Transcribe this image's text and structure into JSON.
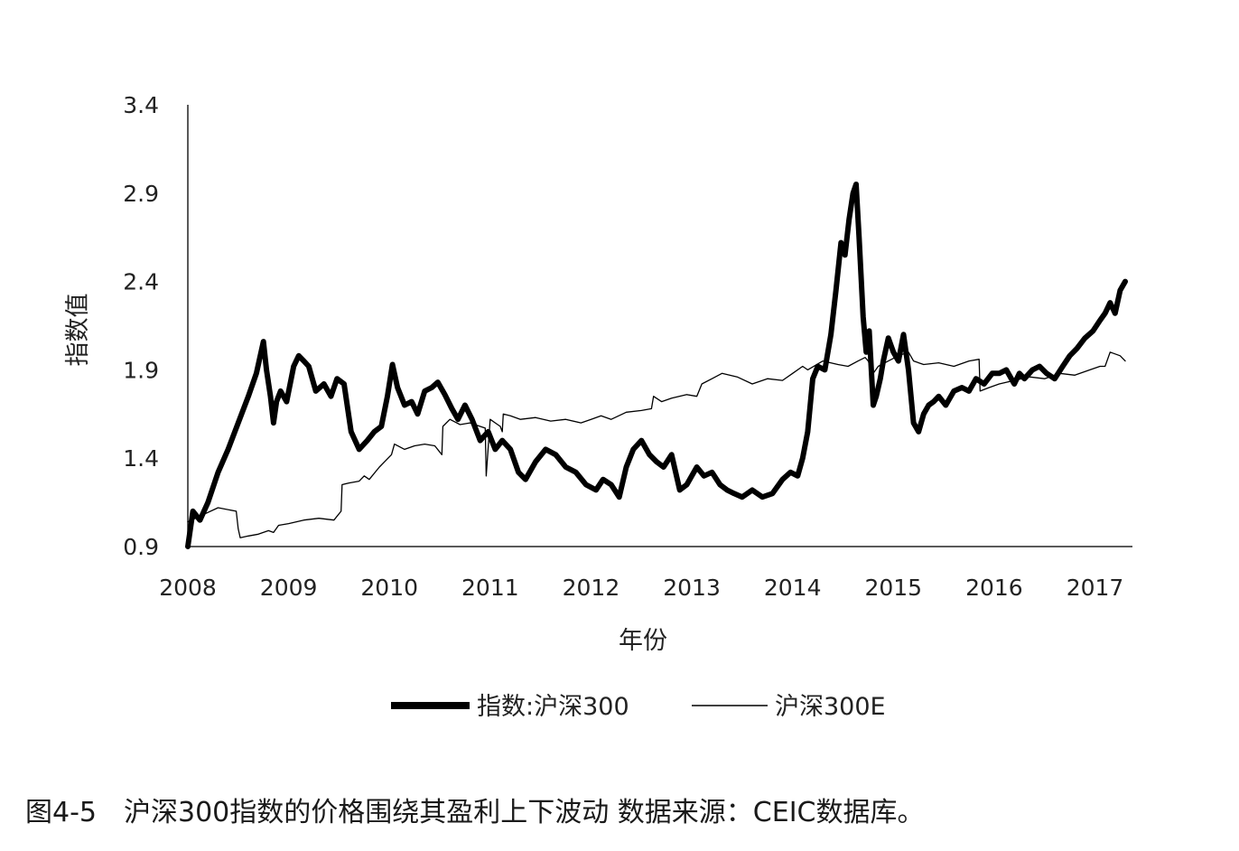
{
  "caption": "图4-5　沪深300指数的价格围绕其盈利上下波动 数据来源：CEIC数据库。",
  "chart_data": {
    "type": "line",
    "title": "",
    "xlabel": "年份",
    "ylabel": "指数值",
    "xlim": [
      2008,
      2017.4
    ],
    "ylim": [
      0.9,
      3.4
    ],
    "x_ticks": [
      "2008",
      "2009",
      "2010",
      "2011",
      "2012",
      "2013",
      "2014",
      "2015",
      "2016",
      "2017"
    ],
    "y_ticks": [
      "0.9",
      "1.4",
      "1.9",
      "2.4",
      "2.9",
      "3.4"
    ],
    "grid": false,
    "legend_position": "bottom",
    "series": [
      {
        "name": "指数:沪深300",
        "style": "thick",
        "color": "#000000",
        "x": [
          2008.0,
          2008.05,
          2008.12,
          2008.2,
          2008.3,
          2008.4,
          2008.5,
          2008.6,
          2008.68,
          2008.75,
          2008.78,
          2008.82,
          2008.85,
          2008.88,
          2008.92,
          2008.98,
          2009.05,
          2009.1,
          2009.15,
          2009.2,
          2009.27,
          2009.35,
          2009.42,
          2009.48,
          2009.55,
          2009.62,
          2009.7,
          2009.78,
          2009.85,
          2009.92,
          2009.98,
          2010.03,
          2010.08,
          2010.15,
          2010.22,
          2010.28,
          2010.35,
          2010.42,
          2010.48,
          2010.55,
          2010.62,
          2010.68,
          2010.75,
          2010.82,
          2010.9,
          2010.98,
          2011.05,
          2011.12,
          2011.2,
          2011.28,
          2011.35,
          2011.45,
          2011.55,
          2011.65,
          2011.75,
          2011.85,
          2011.95,
          2012.05,
          2012.12,
          2012.2,
          2012.28,
          2012.35,
          2012.42,
          2012.5,
          2012.58,
          2012.65,
          2012.72,
          2012.8,
          2012.88,
          2012.95,
          2013.05,
          2013.12,
          2013.2,
          2013.28,
          2013.35,
          2013.42,
          2013.5,
          2013.6,
          2013.7,
          2013.8,
          2013.9,
          2013.98,
          2014.05,
          2014.1,
          2014.15,
          2014.2,
          2014.25,
          2014.32,
          2014.38,
          2014.43,
          2014.48,
          2014.52,
          2014.56,
          2014.6,
          2014.63,
          2014.66,
          2014.7,
          2014.73,
          2014.76,
          2014.8,
          2014.83,
          2014.87,
          2014.9,
          2014.95,
          2015.0,
          2015.05,
          2015.1,
          2015.15,
          2015.2,
          2015.25,
          2015.3,
          2015.35,
          2015.4,
          2015.45,
          2015.52,
          2015.6,
          2015.68,
          2015.75,
          2015.82,
          2015.9,
          2015.98,
          2016.05,
          2016.12,
          2016.2,
          2016.25,
          2016.3,
          2016.38,
          2016.45,
          2016.52,
          2016.6,
          2016.68,
          2016.75,
          2016.82,
          2016.9,
          2016.98,
          2017.05,
          2017.1,
          2017.15,
          2017.2,
          2017.25,
          2017.3
        ],
        "y": [
          0.9,
          1.1,
          1.05,
          1.15,
          1.32,
          1.45,
          1.6,
          1.75,
          1.88,
          2.06,
          1.9,
          1.75,
          1.6,
          1.72,
          1.78,
          1.72,
          1.92,
          1.98,
          1.95,
          1.92,
          1.78,
          1.82,
          1.75,
          1.85,
          1.82,
          1.55,
          1.45,
          1.5,
          1.55,
          1.58,
          1.75,
          1.93,
          1.8,
          1.7,
          1.72,
          1.65,
          1.78,
          1.8,
          1.83,
          1.76,
          1.68,
          1.62,
          1.7,
          1.62,
          1.5,
          1.55,
          1.45,
          1.5,
          1.45,
          1.32,
          1.28,
          1.38,
          1.45,
          1.42,
          1.35,
          1.32,
          1.25,
          1.22,
          1.28,
          1.25,
          1.18,
          1.35,
          1.45,
          1.5,
          1.42,
          1.38,
          1.35,
          1.42,
          1.22,
          1.25,
          1.35,
          1.3,
          1.32,
          1.25,
          1.22,
          1.2,
          1.18,
          1.22,
          1.18,
          1.2,
          1.28,
          1.32,
          1.3,
          1.4,
          1.55,
          1.85,
          1.92,
          1.9,
          2.1,
          2.35,
          2.62,
          2.55,
          2.75,
          2.9,
          2.95,
          2.65,
          2.2,
          2.0,
          2.12,
          1.7,
          1.75,
          1.85,
          1.95,
          2.08,
          2.0,
          1.95,
          2.1,
          1.9,
          1.6,
          1.55,
          1.65,
          1.7,
          1.72,
          1.75,
          1.7,
          1.78,
          1.8,
          1.78,
          1.85,
          1.82,
          1.88,
          1.88,
          1.9,
          1.82,
          1.88,
          1.85,
          1.9,
          1.92,
          1.88,
          1.85,
          1.92,
          1.98,
          2.02,
          2.08,
          2.12,
          2.18,
          2.22,
          2.28,
          2.22,
          2.35,
          2.4
        ]
      },
      {
        "name": "沪深300E",
        "style": "thin",
        "color": "#000000",
        "x": [
          2008.0,
          2008.15,
          2008.3,
          2008.48,
          2008.5,
          2008.52,
          2008.6,
          2008.7,
          2008.8,
          2008.85,
          2008.9,
          2009.0,
          2009.15,
          2009.3,
          2009.45,
          2009.52,
          2009.53,
          2009.6,
          2009.7,
          2009.75,
          2009.8,
          2009.9,
          2010.02,
          2010.05,
          2010.15,
          2010.25,
          2010.35,
          2010.45,
          2010.52,
          2010.53,
          2010.6,
          2010.7,
          2010.8,
          2010.9,
          2010.95,
          2010.96,
          2011.0,
          2011.05,
          2011.1,
          2011.12,
          2011.13,
          2011.2,
          2011.3,
          2011.45,
          2011.6,
          2011.75,
          2011.9,
          2012.0,
          2012.1,
          2012.2,
          2012.35,
          2012.5,
          2012.6,
          2012.62,
          2012.7,
          2012.8,
          2012.95,
          2013.05,
          2013.1,
          2013.2,
          2013.3,
          2013.45,
          2013.6,
          2013.75,
          2013.9,
          2014.0,
          2014.1,
          2014.15,
          2014.3,
          2014.45,
          2014.55,
          2014.65,
          2014.72,
          2014.75,
          2014.8,
          2014.85,
          2014.95,
          2015.05,
          2015.15,
          2015.2,
          2015.3,
          2015.45,
          2015.6,
          2015.75,
          2015.85,
          2015.86,
          2015.95,
          2016.05,
          2016.2,
          2016.35,
          2016.5,
          2016.65,
          2016.8,
          2016.95,
          2017.05,
          2017.1,
          2017.15,
          2017.25,
          2017.3
        ],
        "y": [
          1.04,
          1.08,
          1.12,
          1.1,
          1.0,
          0.95,
          0.96,
          0.97,
          0.99,
          0.98,
          1.02,
          1.03,
          1.05,
          1.06,
          1.05,
          1.1,
          1.25,
          1.26,
          1.27,
          1.3,
          1.28,
          1.35,
          1.42,
          1.48,
          1.45,
          1.47,
          1.48,
          1.47,
          1.42,
          1.58,
          1.62,
          1.59,
          1.6,
          1.58,
          1.57,
          1.3,
          1.62,
          1.6,
          1.58,
          1.55,
          1.65,
          1.64,
          1.62,
          1.63,
          1.61,
          1.62,
          1.6,
          1.62,
          1.64,
          1.62,
          1.66,
          1.67,
          1.68,
          1.75,
          1.72,
          1.74,
          1.76,
          1.75,
          1.82,
          1.85,
          1.88,
          1.86,
          1.82,
          1.85,
          1.84,
          1.88,
          1.92,
          1.9,
          1.95,
          1.93,
          1.92,
          1.95,
          1.97,
          1.95,
          1.88,
          1.92,
          1.95,
          1.98,
          2.0,
          1.95,
          1.93,
          1.94,
          1.92,
          1.95,
          1.96,
          1.78,
          1.8,
          1.82,
          1.84,
          1.86,
          1.85,
          1.88,
          1.87,
          1.9,
          1.92,
          1.92,
          2.0,
          1.98,
          1.95
        ]
      }
    ]
  }
}
